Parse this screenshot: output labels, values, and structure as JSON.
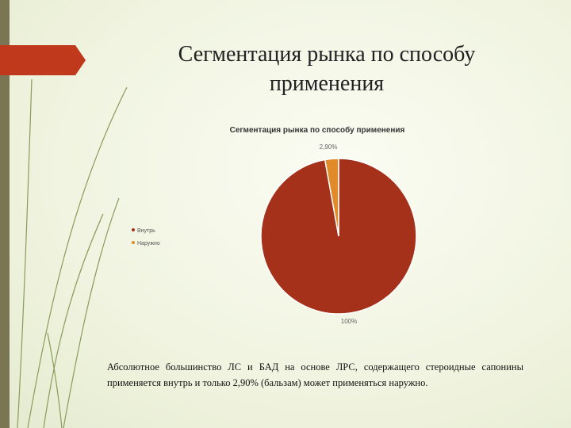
{
  "slide": {
    "title_lines": [
      "Сегментация рынка по способу",
      "применения"
    ],
    "caption": "Абсолютное большинство ЛС и БАД на основе ЛРС, содержащего стероидные сапонины применяется внутрь и только 2,90% (бальзам) может применяться наружно."
  },
  "chart_data": {
    "type": "pie",
    "title": "Сегментация рынка по способу применения",
    "categories": [
      "Внутрь",
      "Наружно"
    ],
    "values": [
      100,
      2.9
    ],
    "value_labels": [
      "100%",
      "2,90%"
    ],
    "colors": [
      "#a5311a",
      "#e08a2a"
    ],
    "legend": "left"
  }
}
